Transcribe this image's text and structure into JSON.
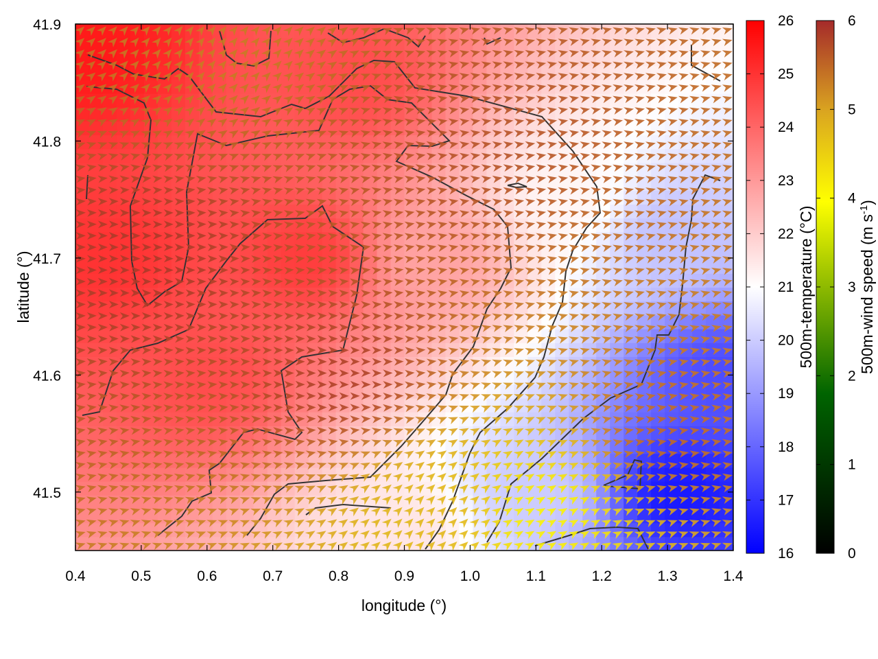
{
  "chart_data": {
    "type": "heatmap",
    "title": "",
    "xlabel": "longitude (°)",
    "ylabel": "latitude (°)",
    "xlim": [
      0.4,
      1.4
    ],
    "ylim": [
      41.45,
      41.9
    ],
    "xticks": [
      "0.4",
      "0.5",
      "0.6",
      "0.7",
      "0.8",
      "0.9",
      "1.0",
      "1.1",
      "1.2",
      "1.3",
      "1.4"
    ],
    "yticks": [
      "41.5",
      "41.6",
      "41.7",
      "41.8",
      "41.9"
    ],
    "ytick_values": [
      41.5,
      41.6,
      41.7,
      41.8,
      41.9
    ],
    "temperature_colorbar": {
      "label": "500m-temperature (°C)",
      "range": [
        16,
        26
      ],
      "ticks": [
        "16",
        "17",
        "18",
        "19",
        "20",
        "21",
        "22",
        "23",
        "24",
        "25",
        "26"
      ],
      "colors": [
        "#0000ff",
        "#ffffff",
        "#ff0000"
      ]
    },
    "wind_colorbar": {
      "label_main": "500m-wind speed (m s",
      "label_sup": "-1",
      "label_close": ")",
      "range": [
        0,
        6
      ],
      "ticks": [
        "0",
        "1",
        "2",
        "3",
        "4",
        "5",
        "6"
      ],
      "colors": [
        "#000000",
        "#006400",
        "#ffff00",
        "#daa520",
        "#a52a2a"
      ]
    },
    "temperature_field_samples": [
      {
        "lon": 0.42,
        "lat": 41.88,
        "t": 25.5
      },
      {
        "lon": 0.45,
        "lat": 41.7,
        "t": 25.0
      },
      {
        "lon": 0.6,
        "lat": 41.6,
        "t": 24.5
      },
      {
        "lon": 0.75,
        "lat": 41.7,
        "t": 24.8
      },
      {
        "lon": 0.82,
        "lat": 41.85,
        "t": 24.5
      },
      {
        "lon": 0.95,
        "lat": 41.7,
        "t": 22.8
      },
      {
        "lon": 1.15,
        "lat": 41.75,
        "t": 21.2
      },
      {
        "lon": 1.3,
        "lat": 41.72,
        "t": 19.8
      },
      {
        "lon": 1.38,
        "lat": 41.6,
        "t": 17.5
      },
      {
        "lon": 1.32,
        "lat": 41.5,
        "t": 16.5
      },
      {
        "lon": 1.1,
        "lat": 41.5,
        "t": 20.0
      },
      {
        "lon": 0.9,
        "lat": 41.47,
        "t": 21.5
      }
    ],
    "wind_field_samples": [
      {
        "lon": 0.5,
        "lat": 41.7,
        "speed": 5.8,
        "dir_deg": 90
      },
      {
        "lon": 0.8,
        "lat": 41.6,
        "speed": 5.7,
        "dir_deg": 90
      },
      {
        "lon": 1.0,
        "lat": 41.8,
        "speed": 5.5,
        "dir_deg": 80
      },
      {
        "lon": 0.6,
        "lat": 41.89,
        "speed": 5.0,
        "dir_deg": 40
      },
      {
        "lon": 0.95,
        "lat": 41.48,
        "speed": 4.2,
        "dir_deg": 45
      },
      {
        "lon": 1.12,
        "lat": 41.48,
        "speed": 3.2,
        "dir_deg": 60
      },
      {
        "lon": 1.3,
        "lat": 41.55,
        "speed": 5.2,
        "dir_deg": 80
      }
    ]
  }
}
